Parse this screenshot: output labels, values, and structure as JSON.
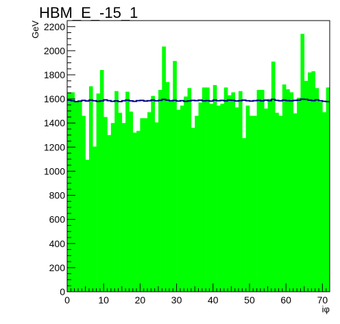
{
  "chart_data": {
    "type": "bar",
    "title": "HBM_E_-15_1",
    "xlabel": "iφ",
    "ylabel": "GeV",
    "xlim": [
      0,
      72
    ],
    "ylim": [
      0,
      2250
    ],
    "x_ticks": [
      0,
      10,
      20,
      30,
      40,
      50,
      60,
      70
    ],
    "x_tick_labels": [
      "0",
      "10",
      "20",
      "30",
      "40",
      "50",
      "60",
      "70"
    ],
    "y_ticks": [
      0,
      200,
      400,
      600,
      800,
      1000,
      1200,
      1400,
      1600,
      1800,
      2000,
      2200
    ],
    "y_tick_labels": [
      "0",
      "200",
      "400",
      "600",
      "800",
      "1000",
      "1200",
      "1400",
      "1600",
      "1800",
      "2000",
      "2200"
    ],
    "bin_width": 1,
    "bins_lower_edges": [
      0,
      1,
      2,
      3,
      4,
      5,
      6,
      7,
      8,
      9,
      10,
      11,
      12,
      13,
      14,
      15,
      16,
      17,
      18,
      19,
      20,
      21,
      22,
      23,
      24,
      25,
      26,
      27,
      28,
      29,
      30,
      31,
      32,
      33,
      34,
      35,
      36,
      37,
      38,
      39,
      40,
      41,
      42,
      43,
      44,
      45,
      46,
      47,
      48,
      49,
      50,
      51,
      52,
      53,
      54,
      55,
      56,
      57,
      58,
      59,
      60,
      61,
      62,
      63,
      64,
      65,
      66,
      67,
      68,
      69,
      70,
      71
    ],
    "series": [
      {
        "kind": "histogram",
        "color": "#00ff00",
        "values": [
          1655,
          1655,
          1580,
          1580,
          1460,
          1095,
          1705,
          1205,
          1645,
          1840,
          1450,
          1300,
          1400,
          1665,
          1485,
          1400,
          1660,
          1495,
          1320,
          1335,
          1440,
          1440,
          1490,
          1625,
          1405,
          1675,
          2035,
          1740,
          1590,
          1915,
          1510,
          1545,
          1620,
          1690,
          1360,
          1460,
          1570,
          1695,
          1695,
          1560,
          1715,
          1545,
          1560,
          1695,
          1630,
          1655,
          1530,
          1665,
          1275,
          1545,
          1460,
          1460,
          1675,
          1675,
          1520,
          1600,
          1910,
          1485,
          1460,
          1720,
          1680,
          1655,
          1480,
          1610,
          2140,
          1750,
          1820,
          1830,
          1690,
          1575,
          1490,
          1695
        ]
      },
      {
        "kind": "step-line",
        "color": "#000080",
        "values": [
          1590,
          1585,
          1578,
          1582,
          1588,
          1583,
          1590,
          1585,
          1580,
          1584,
          1592,
          1586,
          1580,
          1584,
          1578,
          1585,
          1590,
          1584,
          1580,
          1586,
          1588,
          1582,
          1585,
          1590,
          1584,
          1588,
          1596,
          1590,
          1585,
          1588,
          1582,
          1586,
          1580,
          1584,
          1588,
          1586,
          1590,
          1584,
          1586,
          1582,
          1590,
          1585,
          1588,
          1584,
          1590,
          1588,
          1583,
          1586,
          1590,
          1585,
          1582,
          1586,
          1588,
          1584,
          1590,
          1586,
          1596,
          1588,
          1584,
          1590,
          1586,
          1584,
          1588,
          1590,
          1598,
          1596,
          1590,
          1586,
          1592,
          1585,
          1580,
          1578
        ]
      }
    ],
    "grid": false,
    "legend": "none"
  }
}
